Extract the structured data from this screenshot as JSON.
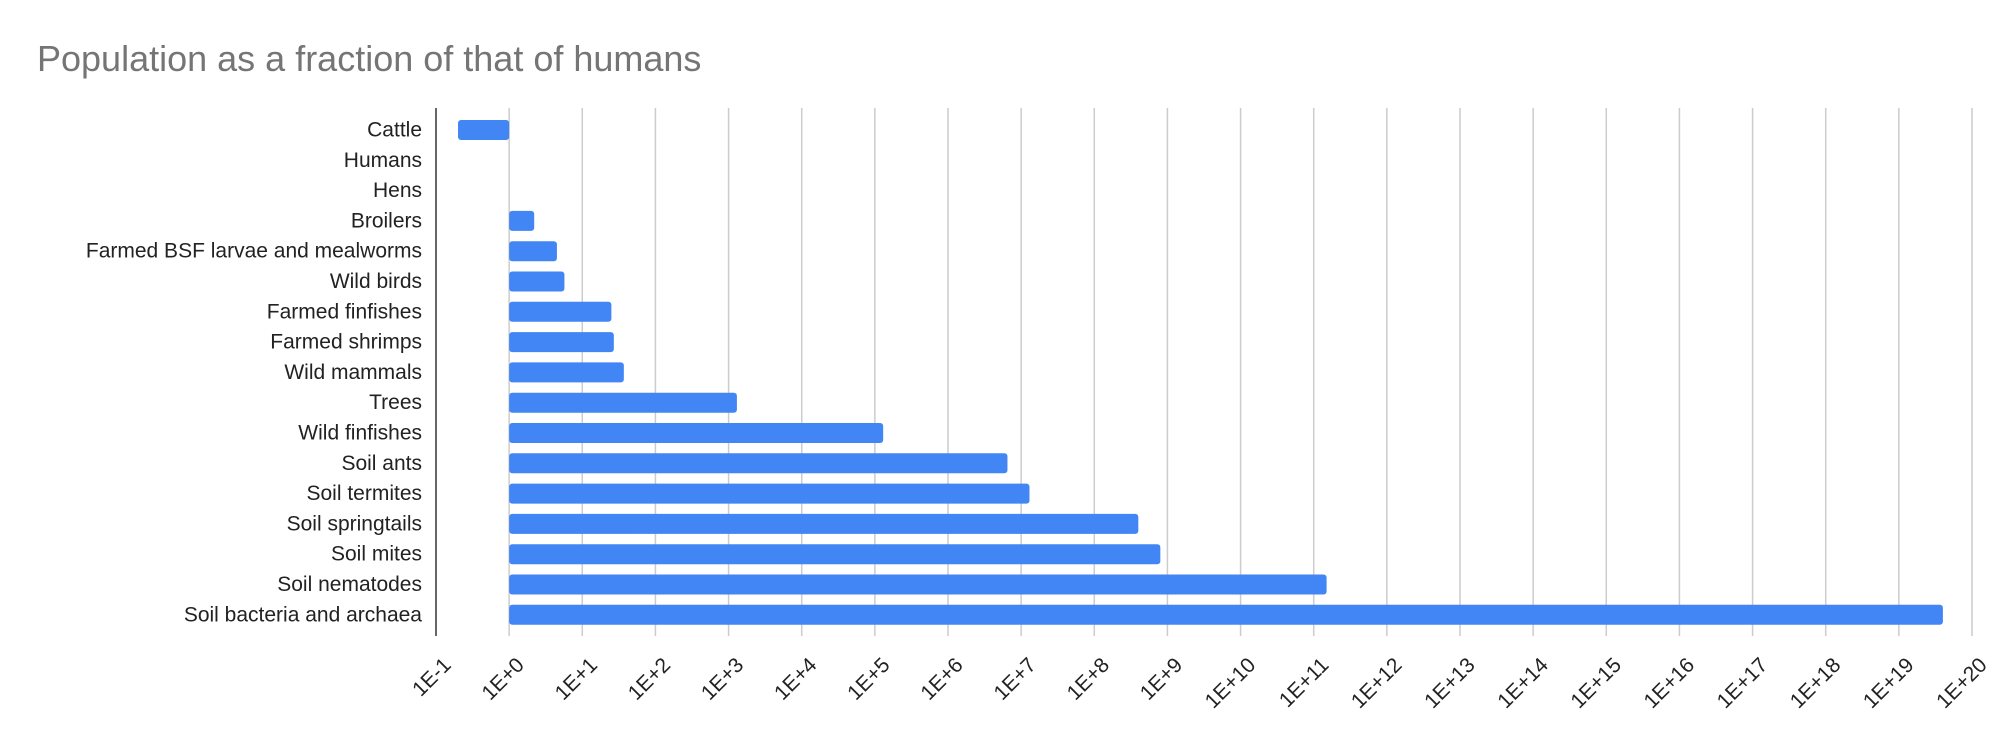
{
  "chart_data": {
    "type": "bar",
    "orientation": "horizontal",
    "title": "Population as a fraction of that of humans",
    "xlabel": "",
    "ylabel": "",
    "x_scale": "log",
    "x_base_value": 1,
    "xlim": [
      0.1,
      1e+20
    ],
    "grid": true,
    "legend": "none",
    "bar_color": "#4285f4",
    "tick_labels": [
      "1E-1",
      "1E+0",
      "1E+1",
      "1E+2",
      "1E+3",
      "1E+4",
      "1E+5",
      "1E+6",
      "1E+7",
      "1E+8",
      "1E+9",
      "1E+10",
      "1E+11",
      "1E+12",
      "1E+13",
      "1E+14",
      "1E+15",
      "1E+16",
      "1E+17",
      "1E+18",
      "1E+19",
      "1E+20"
    ],
    "categories": [
      "Cattle",
      "Humans",
      "Hens",
      "Broilers",
      "Farmed BSF larvae and mealworms",
      "Wild birds",
      "Farmed finfishes",
      "Farmed shrimps",
      "Wild mammals",
      "Trees",
      "Wild finfishes",
      "Soil ants",
      "Soil termites",
      "Soil springtails",
      "Soil mites",
      "Soil nematodes",
      "Soil bacteria and archaea"
    ],
    "values": [
      0.2,
      1,
      1,
      2.2,
      4.5,
      5.7,
      25,
      27,
      37,
      1300,
      130000,
      6500000,
      13000000,
      400000000,
      800000000,
      150000000000.0,
      4e+19
    ]
  }
}
